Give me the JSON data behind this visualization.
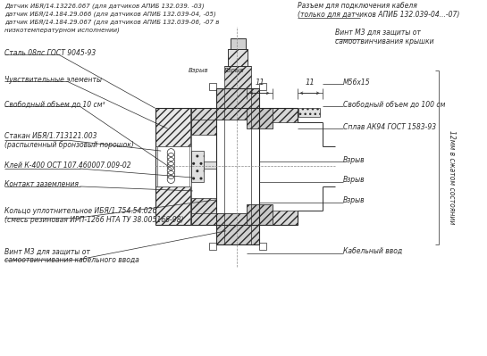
{
  "bg_color": "#ffffff",
  "line_color": "#2a2a2a",
  "text_color": "#2a2a2a",
  "figsize": [
    5.45,
    3.99
  ],
  "dpi": 100,
  "labels_left": [
    "Датчик ИБЯ/14.13226.067 (для датчиков АПИБ 132.039. -03)",
    "датчик ИБЯ/14.184.29.066 (для датчиков АПИБ 132.039-04, -05)",
    "датчик ИБЯ/14.184.29.067 (для датчиков АПИБ 132.039-06, -07 в",
    "низкотемпературном исполнении)"
  ],
  "rotated_label": "12мм в сжатом состоянии"
}
